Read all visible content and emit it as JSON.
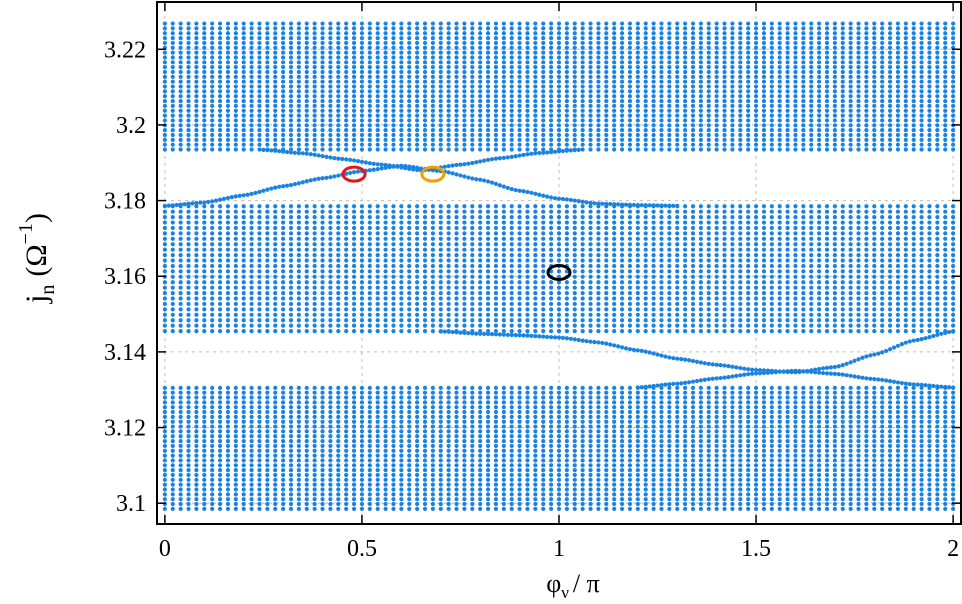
{
  "chart_data": {
    "type": "scatter",
    "title": "",
    "xlabel": {
      "main": "φ",
      "sub": "ν",
      "rest": "/ π"
    },
    "ylabel": {
      "main": "j",
      "sub": "n",
      "unit_open": "(Ω",
      "sup": "−1",
      "unit_close": ")"
    },
    "xlim": [
      -0.02,
      2.02
    ],
    "ylim": [
      3.0945,
      3.2325
    ],
    "xticks": [
      {
        "value": 0,
        "label": "0"
      },
      {
        "value": 0.5,
        "label": "0.5"
      },
      {
        "value": 1,
        "label": "1"
      },
      {
        "value": 1.5,
        "label": "1.5"
      },
      {
        "value": 2,
        "label": "2"
      }
    ],
    "yticks": [
      {
        "value": 3.1,
        "label": "3.1"
      },
      {
        "value": 3.12,
        "label": "3.12"
      },
      {
        "value": 3.14,
        "label": "3.14"
      },
      {
        "value": 3.16,
        "label": "3.16"
      },
      {
        "value": 3.18,
        "label": "3.18"
      },
      {
        "value": 3.2,
        "label": "3.2"
      },
      {
        "value": 3.22,
        "label": "3.22"
      }
    ],
    "grid": true,
    "point_color": "#1a82e0",
    "x_step": 0.02,
    "bands": [
      {
        "y_min": 3.0985,
        "y_max": 3.1305,
        "rows": 26
      },
      {
        "y_min": 3.1455,
        "y_max": 3.1785,
        "rows": 24
      },
      {
        "y_min": 3.1935,
        "y_max": 3.2268,
        "rows": 27
      }
    ],
    "edge_state_curves": [
      {
        "x": [
          0,
          0.1,
          0.2,
          0.3,
          0.4,
          0.5,
          0.6,
          0.7,
          0.8,
          0.9,
          1.0,
          1.1,
          1.2,
          1.3
        ],
        "y": [
          3.1786,
          3.1795,
          3.1814,
          3.1838,
          3.1859,
          3.1878,
          3.1892,
          3.1878,
          3.1855,
          3.1826,
          3.1805,
          3.1792,
          3.1788,
          3.1786
        ]
      },
      {
        "x": [
          0.25,
          0.35,
          0.45,
          0.55,
          0.65,
          0.75,
          0.85,
          0.95,
          1.05
        ],
        "y": [
          3.1934,
          3.1925,
          3.191,
          3.1895,
          3.188,
          3.1895,
          3.1912,
          3.1926,
          3.1934
        ]
      },
      {
        "x": [
          0.7,
          0.8,
          0.9,
          1.0,
          1.1,
          1.2,
          1.3,
          1.4,
          1.5,
          1.6,
          1.7,
          1.8,
          1.9,
          2.0
        ],
        "y": [
          3.1454,
          3.1448,
          3.1444,
          3.1438,
          3.1425,
          3.1404,
          3.1382,
          3.1366,
          3.1352,
          3.1346,
          3.136,
          3.1393,
          3.143,
          3.1454
        ]
      },
      {
        "x": [
          1.2,
          1.3,
          1.4,
          1.5,
          1.6,
          1.7,
          1.8,
          1.9,
          2.0
        ],
        "y": [
          3.1306,
          3.1316,
          3.133,
          3.1343,
          3.135,
          3.1342,
          3.1328,
          3.1314,
          3.1306
        ]
      }
    ],
    "annotations": [
      {
        "shape": "ellipse",
        "x": 0.48,
        "y": 3.187,
        "color": "#e0161e"
      },
      {
        "shape": "ellipse",
        "x": 0.68,
        "y": 3.187,
        "color": "#f0a000"
      },
      {
        "shape": "ellipse",
        "x": 1.0,
        "y": 3.161,
        "color": "#000000"
      }
    ]
  }
}
